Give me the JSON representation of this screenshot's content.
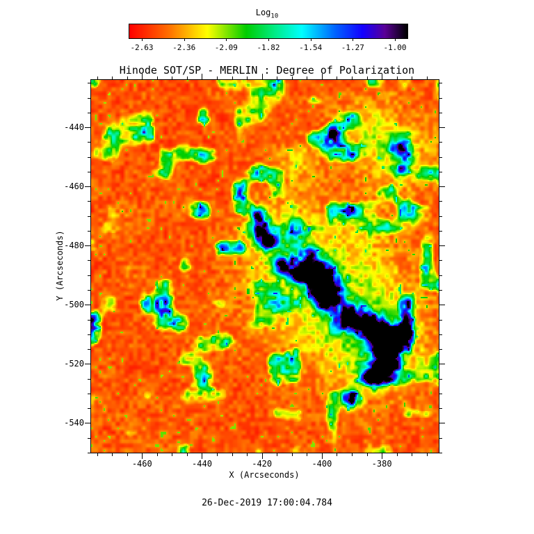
{
  "figure": {
    "background_color": "#ffffff",
    "text_color": "#000000",
    "colorbar": {
      "label_base": "Log",
      "label_sub": "10",
      "tick_labels": [
        "-2.63",
        "-2.36",
        "-2.09",
        "-1.82",
        "-1.54",
        "-1.27",
        "-1.00"
      ]
    },
    "timestamp": "26-Dec-2019 17:00:04.784"
  },
  "chart_data": {
    "type": "heatmap",
    "title": "Hinode SOT/SP - MERLIN : Degree of Polarization",
    "xlabel": "X (Arcseconds)",
    "ylabel": "Y (Arcseconds)",
    "x_range": [
      -477,
      -361
    ],
    "y_range": [
      -550,
      -424
    ],
    "x_ticks": [
      -460,
      -440,
      -420,
      -400,
      -380
    ],
    "y_ticks": [
      -440,
      -460,
      -480,
      -500,
      -520,
      -540
    ],
    "minor_tick_step": 5,
    "colorbar": {
      "label": "Log10",
      "orientation": "horizontal",
      "min": -2.63,
      "max": -1.0,
      "ticks": [
        -2.63,
        -2.36,
        -2.09,
        -1.82,
        -1.54,
        -1.27,
        -1.0
      ],
      "tick_inset_fraction": 0.045,
      "colormap_stops": [
        [
          0.0,
          [
            255,
            0,
            0
          ]
        ],
        [
          0.14,
          [
            255,
            110,
            0
          ]
        ],
        [
          0.28,
          [
            255,
            255,
            0
          ]
        ],
        [
          0.42,
          [
            0,
            205,
            0
          ]
        ],
        [
          0.52,
          [
            0,
            235,
            130
          ]
        ],
        [
          0.62,
          [
            0,
            255,
            255
          ]
        ],
        [
          0.74,
          [
            0,
            100,
            255
          ]
        ],
        [
          0.84,
          [
            20,
            0,
            255
          ]
        ],
        [
          0.92,
          [
            90,
            0,
            150
          ]
        ],
        [
          1.0,
          [
            0,
            0,
            0
          ]
        ]
      ]
    },
    "value_description": "Log10 degree of polarization. Quiet-Sun background near -2.6 (red) with speckled magnetic network lanes near -2.2 to -1.9 (yellow/green). Strong plage patches reaching -1.3 to -1.0 (blue to black) form a diagonal band from about (-420,-475) down to (-375,-525), with weaker green network enhancement in the upper-right quadrant.",
    "render": {
      "seed": 20191226,
      "grid_nx": 250,
      "grid_ny": 268
    },
    "features": {
      "quiet_sun_level_log10": -2.55,
      "blobs": [
        {
          "x": -398,
          "y": -493,
          "r": 16,
          "s": 0.2
        },
        {
          "x": -382,
          "y": -512,
          "r": 12,
          "s": 0.2
        },
        {
          "x": -416,
          "y": -477,
          "r": 8,
          "s": 0.17
        },
        {
          "x": -374,
          "y": -450,
          "r": 9,
          "s": 0.15
        },
        {
          "x": -386,
          "y": -440,
          "r": 7,
          "s": 0.13
        },
        {
          "x": -408,
          "y": -452,
          "r": 5,
          "s": 0.14
        },
        {
          "x": -421.5,
          "y": -470,
          "r": 1.6,
          "s": 0.7
        },
        {
          "x": -420.5,
          "y": -474.5,
          "r": 2.2,
          "s": 0.95
        },
        {
          "x": -418,
          "y": -478.5,
          "r": 2.0,
          "s": 0.9
        },
        {
          "x": -413,
          "y": -487,
          "r": 2.2,
          "s": 0.75
        },
        {
          "x": -408,
          "y": -490,
          "r": 2.0,
          "s": 0.7
        },
        {
          "x": -404,
          "y": -483,
          "r": 1.8,
          "s": 0.6
        },
        {
          "x": -402,
          "y": -489,
          "r": 3.2,
          "s": 1.05
        },
        {
          "x": -399,
          "y": -494,
          "r": 3.4,
          "s": 1.1
        },
        {
          "x": -398,
          "y": -498,
          "r": 2.6,
          "s": 1.0
        },
        {
          "x": -391,
          "y": -504,
          "r": 2.8,
          "s": 0.95
        },
        {
          "x": -384.5,
          "y": -506.5,
          "r": 2.6,
          "s": 0.95
        },
        {
          "x": -380.5,
          "y": -510,
          "r": 3.2,
          "s": 1.05
        },
        {
          "x": -377,
          "y": -513,
          "r": 2.8,
          "s": 1.0
        },
        {
          "x": -378.5,
          "y": -519.5,
          "r": 2.6,
          "s": 0.95
        },
        {
          "x": -382,
          "y": -525,
          "r": 2.2,
          "s": 0.85
        },
        {
          "x": -373,
          "y": -509,
          "r": 2.0,
          "s": 0.7
        },
        {
          "x": -390,
          "y": -532,
          "r": 1.8,
          "s": 0.8
        },
        {
          "x": -375,
          "y": -447,
          "r": 2.0,
          "s": 0.6
        },
        {
          "x": -373.5,
          "y": -454,
          "r": 1.8,
          "s": 0.55
        }
      ]
    }
  }
}
